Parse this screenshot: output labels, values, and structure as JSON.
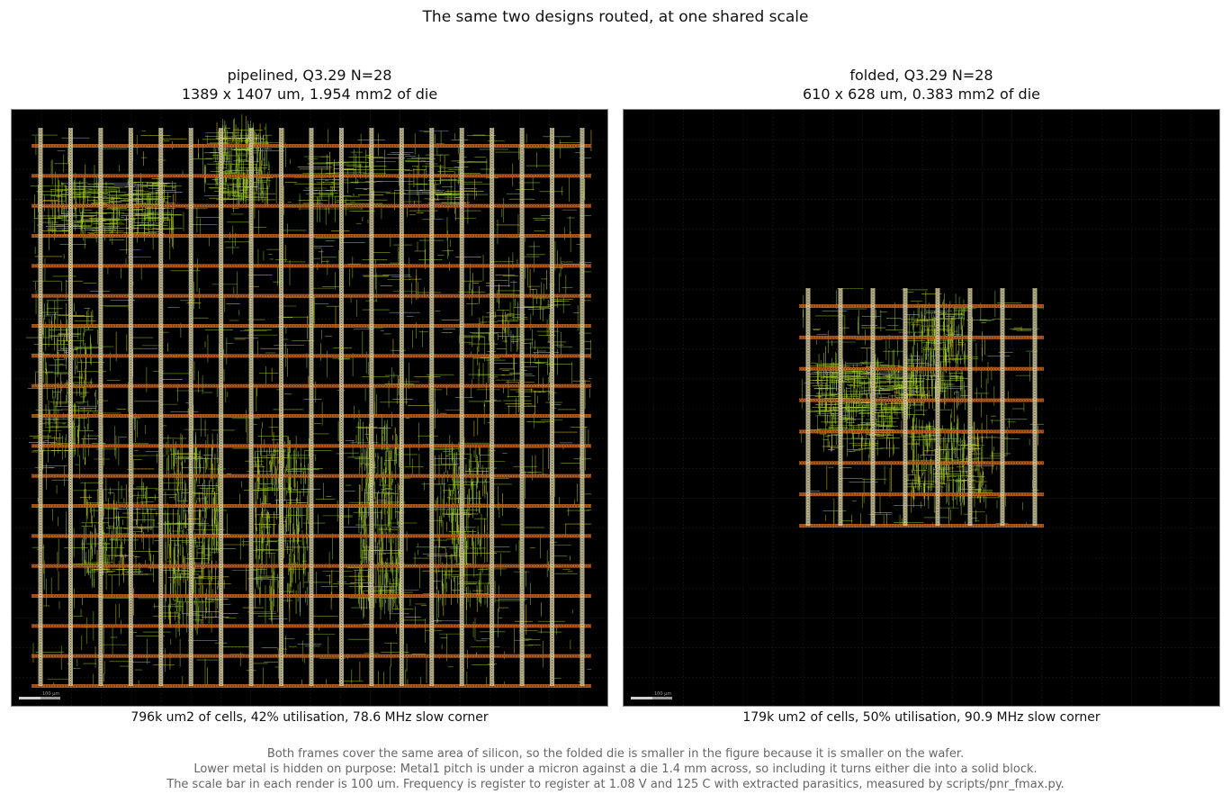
{
  "figure": {
    "title": "The same two designs routed, at one shared scale"
  },
  "panels": [
    {
      "title_line1": "pipelined, Q3.29 N=28",
      "title_line2": "1389 x 1407 um, 1.954 mm2 of die",
      "caption": "796k um2 of cells, 42% utilisation, 78.6 MHz slow corner",
      "scale_bar_label": "100 µm",
      "design": {
        "width_um": 1389,
        "height_um": 1407,
        "area_mm2": 1.954
      }
    },
    {
      "title_line1": "folded, Q3.29 N=28",
      "title_line2": "610 x 628 um, 0.383 mm2 of die",
      "caption": "179k um2 of cells, 50% utilisation, 90.9 MHz slow corner",
      "scale_bar_label": "100 µm",
      "design": {
        "width_um": 610,
        "height_um": 628,
        "area_mm2": 0.383
      }
    }
  ],
  "footnote": {
    "line1": "Both frames cover the same area of silicon, so the folded die is smaller in the figure because it is smaller on the wafer.",
    "line2": "Lower metal is hidden on purpose: Metal1 pitch is under a micron against a die 1.4 mm across, so including it turns either die into a solid block.",
    "line3": "The scale bar in each render is 100 um. Frequency is register to register at 1.08 V and 125 C with extracted parasitics, measured by scripts/pnr_fmax.py."
  },
  "colors": {
    "background": "#000000",
    "power_stripe_horizontal": "#c8651e",
    "power_stripe_vertical": "#d8cfa2",
    "routing": "#9acd32",
    "routing_highlight": "#e8d030",
    "grid": "#1c1c1c"
  }
}
